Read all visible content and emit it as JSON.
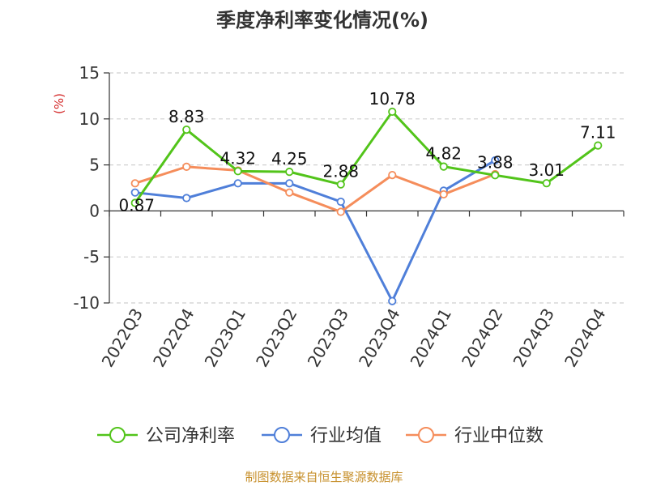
{
  "chart_data": {
    "type": "line",
    "title": "季度净利率变化情况(%)",
    "ylabel": "(%)",
    "xlabel": "",
    "ylim": [
      -10,
      15
    ],
    "yticks": [
      15,
      10,
      5,
      0,
      -5,
      -10
    ],
    "grid": true,
    "legend_position": "bottom",
    "categories": [
      "2022Q3",
      "2022Q4",
      "2023Q1",
      "2023Q2",
      "2023Q3",
      "2023Q4",
      "2024Q1",
      "2024Q2",
      "2024Q3",
      "2024Q4"
    ],
    "series": [
      {
        "name": "公司净利率",
        "color": "#52c41a",
        "values": [
          0.87,
          8.83,
          4.32,
          4.25,
          2.88,
          10.78,
          4.82,
          3.88,
          3.01,
          7.11
        ],
        "labels": [
          "0.87",
          "8.83",
          "4.32",
          "4.25",
          "2.88",
          "10.78",
          "4.82",
          "3.88",
          "3.01",
          "7.11"
        ]
      },
      {
        "name": "行业均值",
        "color": "#4f7fd9",
        "values": [
          2.0,
          1.4,
          3.0,
          3.0,
          1.0,
          -9.8,
          2.2,
          5.5,
          null,
          null
        ]
      },
      {
        "name": "行业中位数",
        "color": "#f58d5b",
        "values": [
          3.0,
          4.8,
          4.4,
          2.0,
          -0.1,
          3.9,
          1.8,
          4.0,
          null,
          null
        ]
      }
    ]
  },
  "source": "制图数据来自恒生聚源数据库"
}
